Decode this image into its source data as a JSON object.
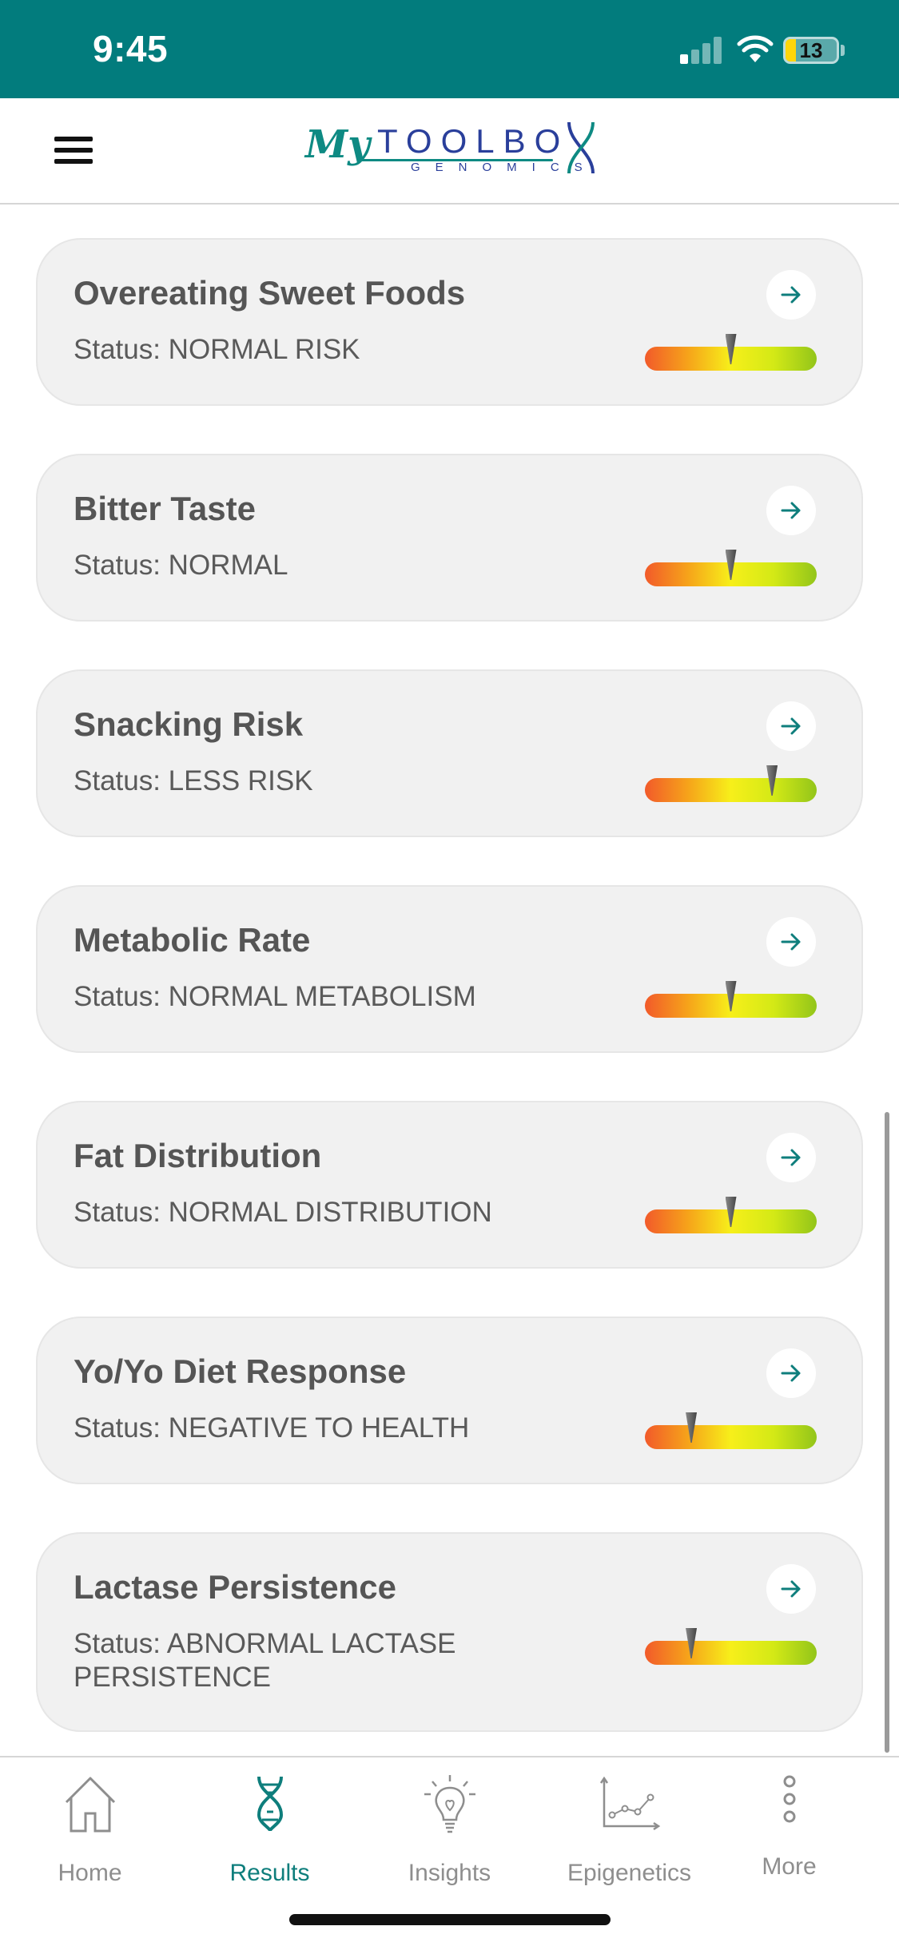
{
  "status_bar": {
    "time": "9:45",
    "battery": "13"
  },
  "header": {
    "logo_my": "My",
    "logo_toolbox": "TOOLBO",
    "logo_genomics": "GENOMICS"
  },
  "cards": [
    {
      "title": "Overeating Sweet Foods",
      "status": "Status: NORMAL RISK",
      "level": 0.5
    },
    {
      "title": "Bitter Taste",
      "status": "Status: NORMAL",
      "level": 0.5
    },
    {
      "title": "Snacking Risk",
      "status": "Status: LESS RISK",
      "level": 0.74
    },
    {
      "title": "Metabolic Rate",
      "status": "Status: NORMAL METABOLISM",
      "level": 0.5
    },
    {
      "title": "Fat Distribution",
      "status": "Status: NORMAL DISTRIBUTION",
      "level": 0.5
    },
    {
      "title": "Yo/Yo Diet Response",
      "status": "Status: NEGATIVE TO HEALTH",
      "level": 0.27
    },
    {
      "title": "Lactase Persistence",
      "status": "Status: ABNORMAL LACTASE PERSISTENCE",
      "level": 0.27
    }
  ],
  "tabs": [
    {
      "label": "Home",
      "icon": "home-icon"
    },
    {
      "label": "Results",
      "icon": "dna-icon",
      "active": true
    },
    {
      "label": "Insights",
      "icon": "lightbulb-icon"
    },
    {
      "label": "Epigenetics",
      "icon": "chart-icon"
    },
    {
      "label": "More",
      "icon": "more-icon"
    }
  ],
  "colors": {
    "brand": "#027c7d",
    "accent": "#0e7e7c"
  }
}
